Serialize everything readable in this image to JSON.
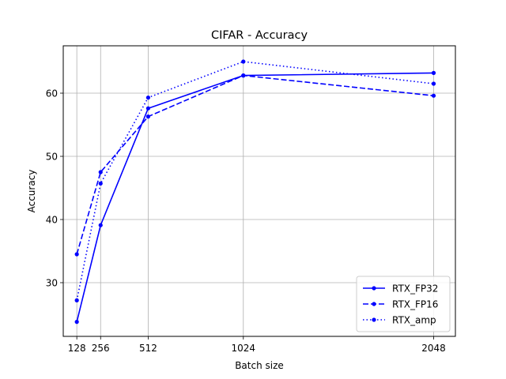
{
  "chart_data": {
    "type": "line",
    "title": "CIFAR - Accuracy",
    "xlabel": "Batch size",
    "ylabel": "Accuracy",
    "x": [
      128,
      256,
      512,
      1024,
      2048
    ],
    "x_ticks": [
      "128",
      "256",
      "512",
      "1024",
      "2048"
    ],
    "y_ticks": [
      "30",
      "40",
      "50",
      "60"
    ],
    "xlim": [
      55,
      2165
    ],
    "ylim": [
      21.5,
      67.5
    ],
    "grid": true,
    "legend_position": "lower-right",
    "color": "#0000ff",
    "series": [
      {
        "name": "RTX_FP32",
        "style": "solid",
        "values": [
          23.8,
          39.1,
          57.6,
          62.8,
          63.2
        ]
      },
      {
        "name": "RTX_FP16",
        "style": "dashed",
        "values": [
          34.5,
          47.5,
          56.3,
          62.8,
          59.6
        ]
      },
      {
        "name": "RTX_amp",
        "style": "dotted",
        "values": [
          27.2,
          45.7,
          59.3,
          65.0,
          61.5
        ]
      }
    ]
  }
}
